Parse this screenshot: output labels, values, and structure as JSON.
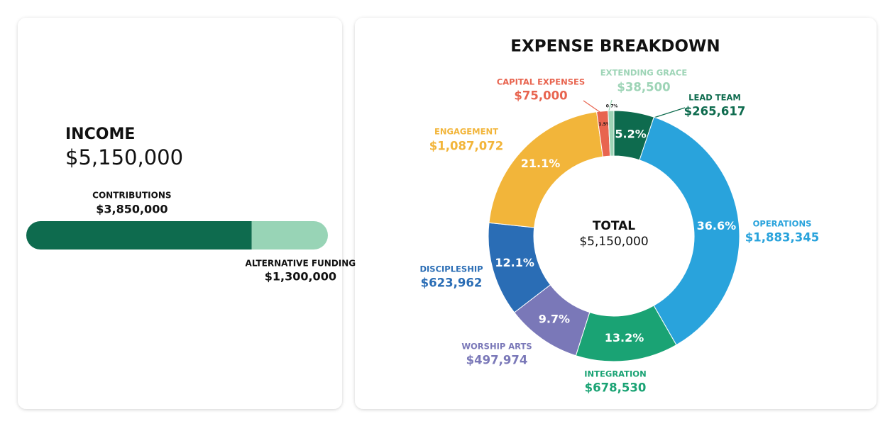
{
  "chart_data": [
    {
      "type": "bar",
      "title": "INCOME",
      "total": {
        "value": 5150000,
        "label": "$5,150,000"
      },
      "categories": [
        null
      ],
      "series": [
        {
          "name": "CONTRIBUTIONS",
          "color": "#0e6b4e",
          "values": [
            3850000
          ],
          "value_labels": [
            "$3,850,000"
          ]
        },
        {
          "name": "ALTERNATIVE FUNDING",
          "color": "#98d4b6",
          "values": [
            1300000
          ],
          "value_labels": [
            "$1,300,000"
          ]
        }
      ]
    },
    {
      "type": "pie",
      "title": "EXPENSE BREAKDOWN",
      "center_label": "TOTAL",
      "center_value": {
        "value": 5150000,
        "label": "$5,150,000"
      },
      "categories": [
        "LEAD TEAM",
        "OPERATIONS",
        "INTEGRATION",
        "WORSHIP ARTS",
        "DISCIPLESHIP",
        "ENGAGEMENT",
        "CAPITAL EXPENSES",
        "EXTENDING GRACE"
      ],
      "values": [
        265617,
        1883345,
        678530,
        497974,
        623962,
        1087072,
        75000,
        38500
      ],
      "value_labels": [
        "$265,617",
        "$1,883,345",
        "$678,530",
        "$497,974",
        "$623,962",
        "$1,087,072",
        "$75,000",
        "$38,500"
      ],
      "percents": [
        5.2,
        36.6,
        13.2,
        9.7,
        12.1,
        21.1,
        1.5,
        0.7
      ],
      "percent_labels": [
        "5.2%",
        "36.6%",
        "13.2%",
        "9.7%",
        "12.1%",
        "21.1%",
        "1.5%",
        "0.7%"
      ],
      "colors": [
        "#0e6b4e",
        "#29a3dc",
        "#1aa374",
        "#7a78b8",
        "#2a6db5",
        "#f2b53a",
        "#e8644f",
        "#9dd4b6"
      ]
    }
  ]
}
